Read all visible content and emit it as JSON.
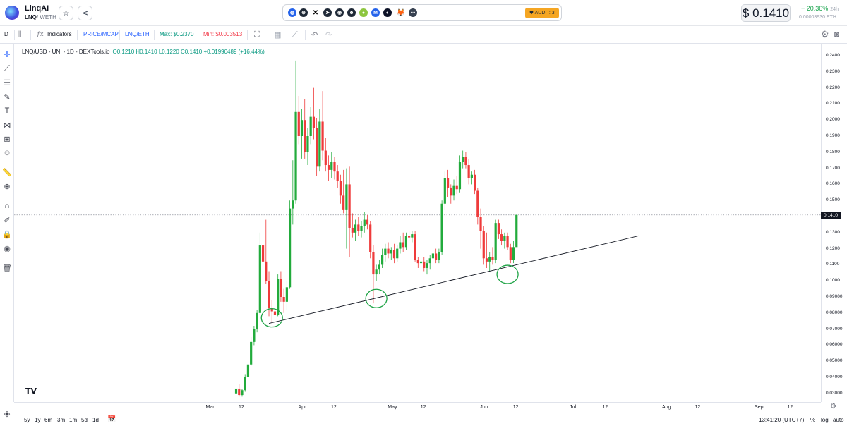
{
  "header": {
    "token_name": "LinqAI",
    "pair_base": "LNQ",
    "pair_quote": "/ WETH",
    "star_icon": "star-icon",
    "share_icon": "share-icon",
    "audit_label": "AUDIT: 3",
    "price": "$ 0.1410",
    "change_pct": "+ 20.36%",
    "change_period": "24h",
    "eth_price": "0.00003930 ETH",
    "social_icons": [
      "website-icon",
      "globe-icon",
      "x-icon",
      "telegram-icon",
      "discord-icon",
      "reddit-icon",
      "coingecko-icon",
      "coinmarketcap-icon",
      "etherscan-icon",
      "metamask-icon",
      "more-icon"
    ]
  },
  "toolbar": {
    "interval": "D",
    "indicators": "Indicators",
    "price_mcap": "PRICE/MCAP",
    "pair_toggle": "LNQ/ETH",
    "max_label": "Max: $0.2370",
    "min_label": "Min: $0.003513"
  },
  "legend": {
    "title": "LNQ/USD - UNI - 1D - DEXTools.io",
    "ohlc": "O0.1210 H0.1410 L0.1220 C0.1410 +0.01990489 (+16.44%)"
  },
  "price_axis": {
    "labels": [
      "0.2400",
      "0.2300",
      "0.2200",
      "0.2100",
      "0.2000",
      "0.1900",
      "0.1800",
      "0.1700",
      "0.1600",
      "0.1500",
      "0.1300",
      "0.1200",
      "0.1100",
      "0.1000",
      "0.09000",
      "0.08000",
      "0.07000",
      "0.06000",
      "0.05000",
      "0.04000",
      "0.03000"
    ],
    "current": "0.1410"
  },
  "time_axis": {
    "labels": [
      "Mar",
      "12",
      "Apr",
      "12",
      "May",
      "12",
      "Jun",
      "12",
      "Jul",
      "12",
      "Aug",
      "12",
      "Sep",
      "12"
    ]
  },
  "bottom_bar": {
    "ranges": [
      "5y",
      "1y",
      "6m",
      "3m",
      "1m",
      "5d",
      "1d"
    ],
    "clock": "13:41:20 (UTC+7)",
    "pct": "%",
    "log": "log",
    "auto": "auto"
  },
  "colors": {
    "up": "#22ab3c",
    "down": "#ef3b3b",
    "annotation": "#1ea345",
    "accent": "#2962ff"
  },
  "chart_data": {
    "type": "candlestick",
    "ylim": [
      0.03,
      0.24
    ],
    "title": "LNQ/USD - UNI - 1D - DEXTools.io",
    "current_price": 0.141,
    "candles": [
      {
        "date": "2024-03-10",
        "o": 0.03,
        "h": 0.034,
        "l": 0.029,
        "c": 0.033
      },
      {
        "date": "2024-03-11",
        "o": 0.033,
        "h": 0.036,
        "l": 0.028,
        "c": 0.029
      },
      {
        "date": "2024-03-12",
        "o": 0.029,
        "h": 0.033,
        "l": 0.028,
        "c": 0.032
      },
      {
        "date": "2024-03-13",
        "o": 0.032,
        "h": 0.042,
        "l": 0.031,
        "c": 0.04
      },
      {
        "date": "2024-03-14",
        "o": 0.04,
        "h": 0.05,
        "l": 0.039,
        "c": 0.048
      },
      {
        "date": "2024-03-15",
        "o": 0.048,
        "h": 0.065,
        "l": 0.047,
        "c": 0.062
      },
      {
        "date": "2024-03-16",
        "o": 0.062,
        "h": 0.072,
        "l": 0.06,
        "c": 0.07
      },
      {
        "date": "2024-03-17",
        "o": 0.07,
        "h": 0.082,
        "l": 0.068,
        "c": 0.08
      },
      {
        "date": "2024-03-18",
        "o": 0.08,
        "h": 0.13,
        "l": 0.079,
        "c": 0.122
      },
      {
        "date": "2024-03-19",
        "o": 0.122,
        "h": 0.136,
        "l": 0.11,
        "c": 0.112
      },
      {
        "date": "2024-03-20",
        "o": 0.112,
        "h": 0.138,
        "l": 0.098,
        "c": 0.1
      },
      {
        "date": "2024-03-21",
        "o": 0.1,
        "h": 0.106,
        "l": 0.078,
        "c": 0.083
      },
      {
        "date": "2024-03-22",
        "o": 0.083,
        "h": 0.088,
        "l": 0.074,
        "c": 0.081
      },
      {
        "date": "2024-03-23",
        "o": 0.081,
        "h": 0.085,
        "l": 0.074,
        "c": 0.079
      },
      {
        "date": "2024-03-24",
        "o": 0.079,
        "h": 0.104,
        "l": 0.078,
        "c": 0.101
      },
      {
        "date": "2024-03-25",
        "o": 0.101,
        "h": 0.106,
        "l": 0.087,
        "c": 0.09
      },
      {
        "date": "2024-03-26",
        "o": 0.09,
        "h": 0.095,
        "l": 0.08,
        "c": 0.087
      },
      {
        "date": "2024-03-27",
        "o": 0.087,
        "h": 0.1,
        "l": 0.082,
        "c": 0.096
      },
      {
        "date": "2024-03-28",
        "o": 0.096,
        "h": 0.15,
        "l": 0.095,
        "c": 0.145
      },
      {
        "date": "2024-03-29",
        "o": 0.145,
        "h": 0.175,
        "l": 0.135,
        "c": 0.15
      },
      {
        "date": "2024-03-30",
        "o": 0.15,
        "h": 0.237,
        "l": 0.148,
        "c": 0.205
      },
      {
        "date": "2024-03-31",
        "o": 0.205,
        "h": 0.215,
        "l": 0.185,
        "c": 0.19
      },
      {
        "date": "2024-04-01",
        "o": 0.19,
        "h": 0.207,
        "l": 0.176,
        "c": 0.2
      },
      {
        "date": "2024-04-02",
        "o": 0.2,
        "h": 0.213,
        "l": 0.176,
        "c": 0.18
      },
      {
        "date": "2024-04-03",
        "o": 0.18,
        "h": 0.195,
        "l": 0.172,
        "c": 0.19
      },
      {
        "date": "2024-04-04",
        "o": 0.19,
        "h": 0.208,
        "l": 0.185,
        "c": 0.202
      },
      {
        "date": "2024-04-05",
        "o": 0.202,
        "h": 0.22,
        "l": 0.188,
        "c": 0.195
      },
      {
        "date": "2024-04-06",
        "o": 0.195,
        "h": 0.201,
        "l": 0.165,
        "c": 0.171
      },
      {
        "date": "2024-04-07",
        "o": 0.171,
        "h": 0.207,
        "l": 0.168,
        "c": 0.199
      },
      {
        "date": "2024-04-08",
        "o": 0.199,
        "h": 0.218,
        "l": 0.175,
        "c": 0.181
      },
      {
        "date": "2024-04-09",
        "o": 0.181,
        "h": 0.189,
        "l": 0.168,
        "c": 0.172
      },
      {
        "date": "2024-04-10",
        "o": 0.172,
        "h": 0.178,
        "l": 0.162,
        "c": 0.169
      },
      {
        "date": "2024-04-11",
        "o": 0.169,
        "h": 0.18,
        "l": 0.164,
        "c": 0.174
      },
      {
        "date": "2024-04-12",
        "o": 0.174,
        "h": 0.177,
        "l": 0.163,
        "c": 0.168
      },
      {
        "date": "2024-04-13",
        "o": 0.168,
        "h": 0.172,
        "l": 0.158,
        "c": 0.162
      },
      {
        "date": "2024-04-14",
        "o": 0.162,
        "h": 0.166,
        "l": 0.148,
        "c": 0.153
      },
      {
        "date": "2024-04-15",
        "o": 0.153,
        "h": 0.169,
        "l": 0.142,
        "c": 0.144
      },
      {
        "date": "2024-04-16",
        "o": 0.144,
        "h": 0.17,
        "l": 0.12,
        "c": 0.16
      },
      {
        "date": "2024-04-17",
        "o": 0.16,
        "h": 0.171,
        "l": 0.115,
        "c": 0.133
      },
      {
        "date": "2024-04-18",
        "o": 0.133,
        "h": 0.142,
        "l": 0.127,
        "c": 0.13
      },
      {
        "date": "2024-04-19",
        "o": 0.13,
        "h": 0.138,
        "l": 0.125,
        "c": 0.135
      },
      {
        "date": "2024-04-20",
        "o": 0.135,
        "h": 0.14,
        "l": 0.128,
        "c": 0.131
      },
      {
        "date": "2024-04-21",
        "o": 0.131,
        "h": 0.137,
        "l": 0.127,
        "c": 0.134
      },
      {
        "date": "2024-04-22",
        "o": 0.134,
        "h": 0.143,
        "l": 0.13,
        "c": 0.138
      },
      {
        "date": "2024-04-23",
        "o": 0.138,
        "h": 0.141,
        "l": 0.132,
        "c": 0.135
      },
      {
        "date": "2024-04-24",
        "o": 0.135,
        "h": 0.137,
        "l": 0.114,
        "c": 0.118
      },
      {
        "date": "2024-04-25",
        "o": 0.118,
        "h": 0.122,
        "l": 0.086,
        "c": 0.104
      },
      {
        "date": "2024-04-26",
        "o": 0.104,
        "h": 0.11,
        "l": 0.1,
        "c": 0.107
      },
      {
        "date": "2024-04-27",
        "o": 0.107,
        "h": 0.113,
        "l": 0.104,
        "c": 0.11
      },
      {
        "date": "2024-04-28",
        "o": 0.11,
        "h": 0.12,
        "l": 0.108,
        "c": 0.116
      },
      {
        "date": "2024-04-29",
        "o": 0.116,
        "h": 0.123,
        "l": 0.112,
        "c": 0.12
      },
      {
        "date": "2024-04-30",
        "o": 0.12,
        "h": 0.124,
        "l": 0.114,
        "c": 0.117
      },
      {
        "date": "2024-05-01",
        "o": 0.117,
        "h": 0.121,
        "l": 0.113,
        "c": 0.119
      },
      {
        "date": "2024-05-02",
        "o": 0.119,
        "h": 0.123,
        "l": 0.111,
        "c": 0.114
      },
      {
        "date": "2024-05-03",
        "o": 0.114,
        "h": 0.122,
        "l": 0.112,
        "c": 0.12
      },
      {
        "date": "2024-05-04",
        "o": 0.12,
        "h": 0.128,
        "l": 0.117,
        "c": 0.124
      },
      {
        "date": "2024-05-05",
        "o": 0.124,
        "h": 0.13,
        "l": 0.118,
        "c": 0.121
      },
      {
        "date": "2024-05-06",
        "o": 0.121,
        "h": 0.13,
        "l": 0.119,
        "c": 0.128
      },
      {
        "date": "2024-05-07",
        "o": 0.128,
        "h": 0.131,
        "l": 0.125,
        "c": 0.127
      },
      {
        "date": "2024-05-08",
        "o": 0.127,
        "h": 0.131,
        "l": 0.124,
        "c": 0.129
      },
      {
        "date": "2024-05-09",
        "o": 0.129,
        "h": 0.131,
        "l": 0.112,
        "c": 0.113
      },
      {
        "date": "2024-05-10",
        "o": 0.113,
        "h": 0.115,
        "l": 0.108,
        "c": 0.111
      },
      {
        "date": "2024-05-11",
        "o": 0.111,
        "h": 0.115,
        "l": 0.108,
        "c": 0.112
      },
      {
        "date": "2024-05-12",
        "o": 0.112,
        "h": 0.115,
        "l": 0.106,
        "c": 0.108
      },
      {
        "date": "2024-05-13",
        "o": 0.108,
        "h": 0.113,
        "l": 0.104,
        "c": 0.111
      },
      {
        "date": "2024-05-14",
        "o": 0.111,
        "h": 0.116,
        "l": 0.107,
        "c": 0.114
      },
      {
        "date": "2024-05-15",
        "o": 0.114,
        "h": 0.12,
        "l": 0.111,
        "c": 0.117
      },
      {
        "date": "2024-05-16",
        "o": 0.117,
        "h": 0.12,
        "l": 0.111,
        "c": 0.113
      },
      {
        "date": "2024-05-17",
        "o": 0.113,
        "h": 0.12,
        "l": 0.111,
        "c": 0.118
      },
      {
        "date": "2024-05-18",
        "o": 0.118,
        "h": 0.15,
        "l": 0.116,
        "c": 0.148
      },
      {
        "date": "2024-05-19",
        "o": 0.148,
        "h": 0.168,
        "l": 0.144,
        "c": 0.164
      },
      {
        "date": "2024-05-20",
        "o": 0.164,
        "h": 0.169,
        "l": 0.152,
        "c": 0.158
      },
      {
        "date": "2024-05-21",
        "o": 0.158,
        "h": 0.16,
        "l": 0.148,
        "c": 0.153
      },
      {
        "date": "2024-05-22",
        "o": 0.153,
        "h": 0.163,
        "l": 0.15,
        "c": 0.159
      },
      {
        "date": "2024-05-23",
        "o": 0.159,
        "h": 0.165,
        "l": 0.154,
        "c": 0.157
      },
      {
        "date": "2024-05-24",
        "o": 0.157,
        "h": 0.178,
        "l": 0.155,
        "c": 0.174
      },
      {
        "date": "2024-05-25",
        "o": 0.174,
        "h": 0.181,
        "l": 0.17,
        "c": 0.177
      },
      {
        "date": "2024-05-26",
        "o": 0.177,
        "h": 0.18,
        "l": 0.17,
        "c": 0.172
      },
      {
        "date": "2024-05-27",
        "o": 0.172,
        "h": 0.176,
        "l": 0.16,
        "c": 0.164
      },
      {
        "date": "2024-05-28",
        "o": 0.164,
        "h": 0.168,
        "l": 0.16,
        "c": 0.166
      },
      {
        "date": "2024-05-29",
        "o": 0.166,
        "h": 0.169,
        "l": 0.154,
        "c": 0.156
      },
      {
        "date": "2024-05-30",
        "o": 0.156,
        "h": 0.158,
        "l": 0.135,
        "c": 0.14
      },
      {
        "date": "2024-05-31",
        "o": 0.14,
        "h": 0.145,
        "l": 0.12,
        "c": 0.131
      },
      {
        "date": "2024-06-01",
        "o": 0.131,
        "h": 0.134,
        "l": 0.11,
        "c": 0.114
      },
      {
        "date": "2024-06-02",
        "o": 0.114,
        "h": 0.13,
        "l": 0.108,
        "c": 0.112
      },
      {
        "date": "2024-06-03",
        "o": 0.112,
        "h": 0.118,
        "l": 0.106,
        "c": 0.115
      },
      {
        "date": "2024-06-04",
        "o": 0.115,
        "h": 0.121,
        "l": 0.11,
        "c": 0.113
      },
      {
        "date": "2024-06-05",
        "o": 0.113,
        "h": 0.138,
        "l": 0.111,
        "c": 0.136
      },
      {
        "date": "2024-06-06",
        "o": 0.136,
        "h": 0.138,
        "l": 0.126,
        "c": 0.129
      },
      {
        "date": "2024-06-07",
        "o": 0.129,
        "h": 0.132,
        "l": 0.122,
        "c": 0.125
      },
      {
        "date": "2024-06-08",
        "o": 0.125,
        "h": 0.13,
        "l": 0.12,
        "c": 0.128
      },
      {
        "date": "2024-06-09",
        "o": 0.128,
        "h": 0.13,
        "l": 0.119,
        "c": 0.121
      },
      {
        "date": "2024-06-10",
        "o": 0.121,
        "h": 0.123,
        "l": 0.111,
        "c": 0.113
      },
      {
        "date": "2024-06-11",
        "o": 0.113,
        "h": 0.125,
        "l": 0.111,
        "c": 0.121
      },
      {
        "date": "2024-06-12",
        "o": 0.121,
        "h": 0.141,
        "l": 0.122,
        "c": 0.141
      }
    ],
    "trendline": {
      "from": {
        "date": "2024-03-21",
        "price": 0.0735
      },
      "to": {
        "date": "2024-07-23",
        "price": 0.128
      }
    },
    "annotations": [
      {
        "date": "2024-03-22",
        "price": 0.077,
        "shape": "ellipse"
      },
      {
        "date": "2024-04-26",
        "price": 0.089,
        "shape": "ellipse"
      },
      {
        "date": "2024-06-09",
        "price": 0.104,
        "shape": "ellipse"
      }
    ]
  }
}
